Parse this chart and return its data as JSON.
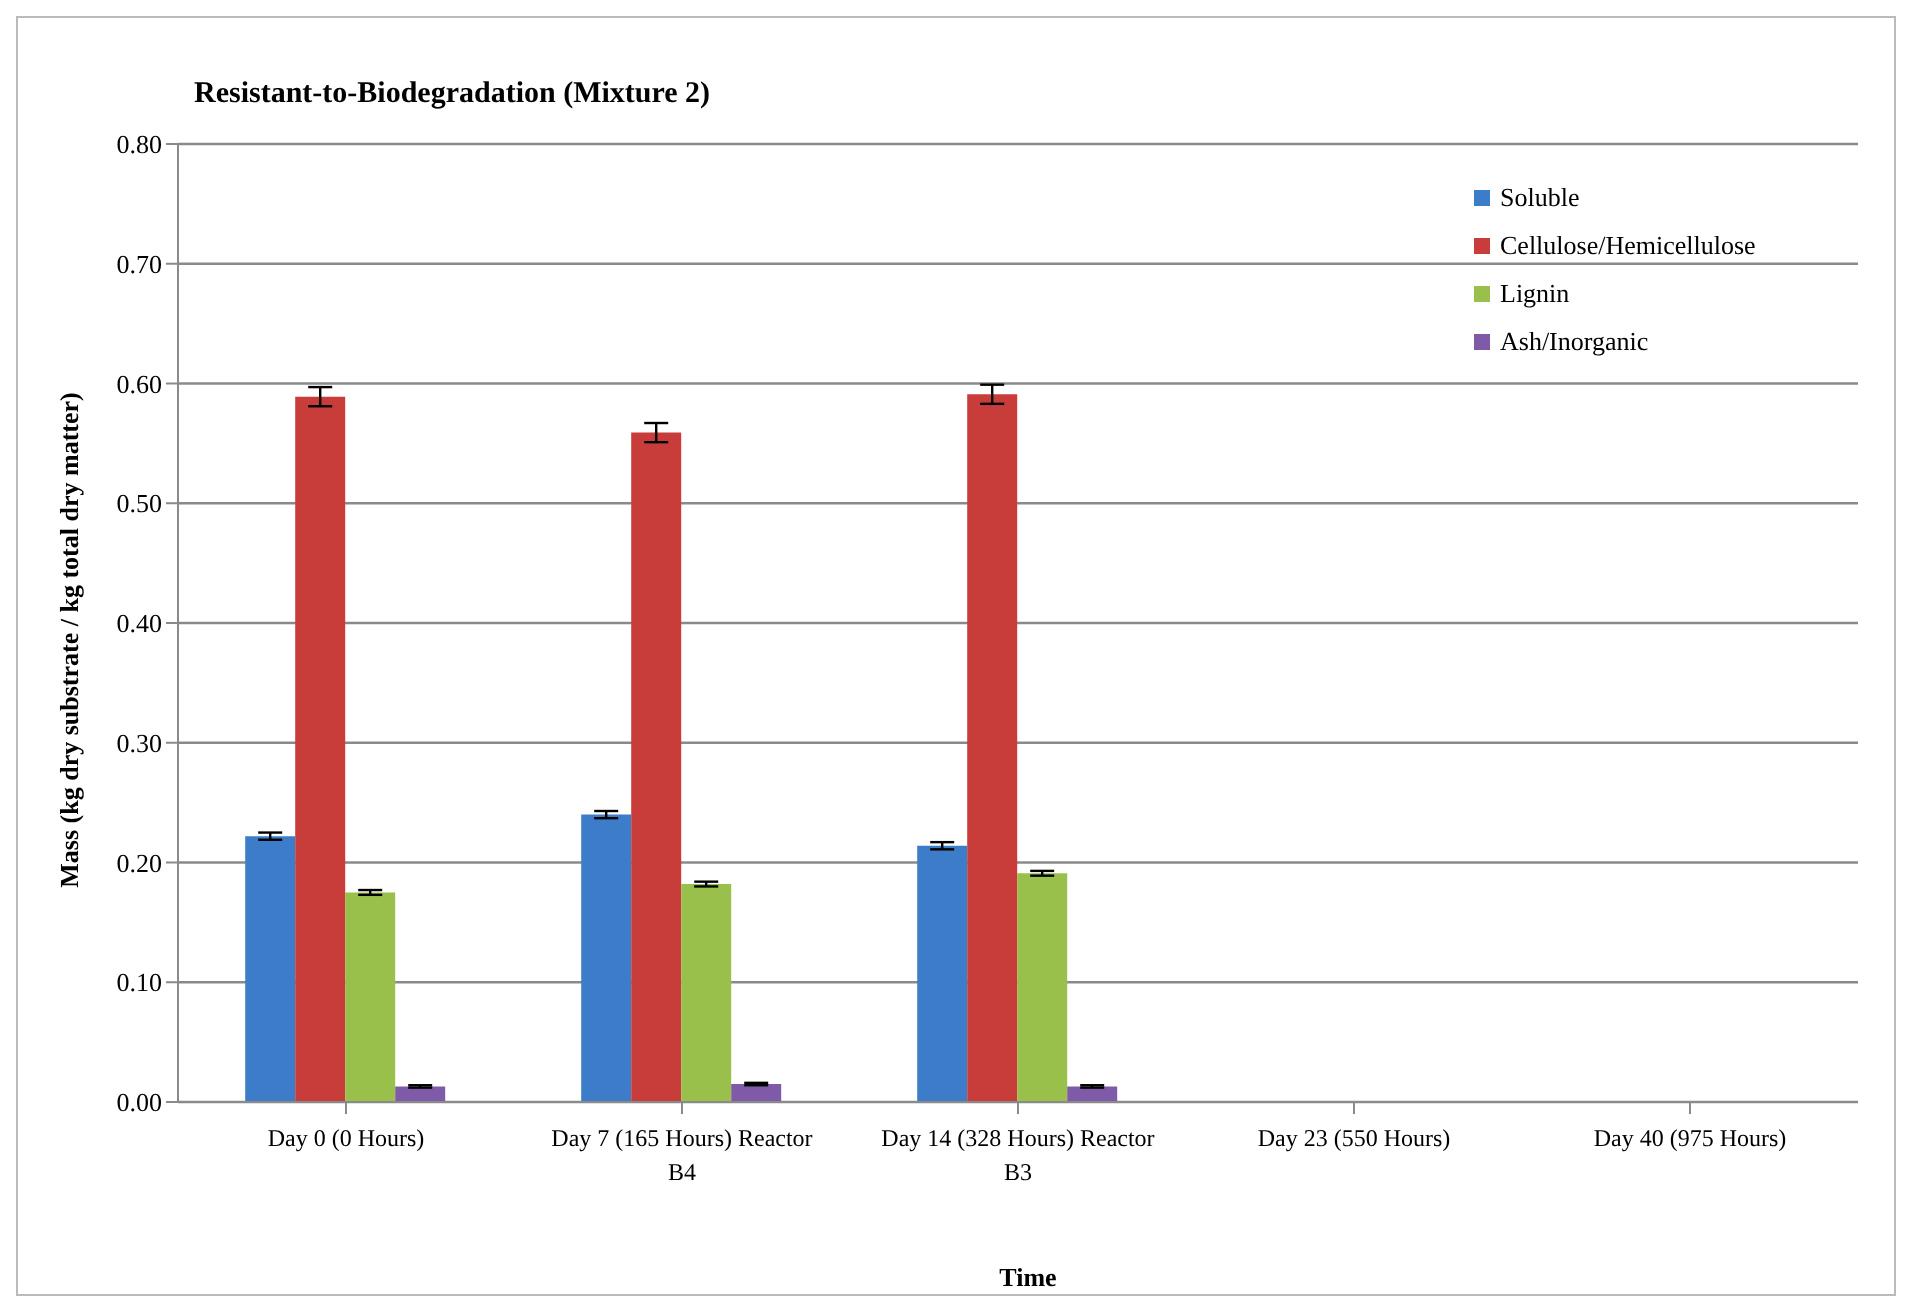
{
  "chart_data": {
    "type": "bar",
    "title": "Resistant-to-Biodegradation (Mixture 2)",
    "xlabel": "Time",
    "ylabel": "Mass (kg dry substrate / kg total dry matter)",
    "categories": [
      "Day 0 (0 Hours)",
      "Day 7 (165 Hours) Reactor B4",
      "Day 14 (328 Hours) Reactor B3",
      "Day 23 (550 Hours)",
      "Day 40 (975 Hours)"
    ],
    "series": [
      {
        "name": "Soluble",
        "color": "#3c7cc8",
        "values": [
          0.222,
          0.24,
          0.214,
          null,
          null
        ],
        "errors": [
          0.003,
          0.003,
          0.003,
          null,
          null
        ]
      },
      {
        "name": "Cellulose/Hemicellulose",
        "color": "#c83c3a",
        "values": [
          0.589,
          0.559,
          0.591,
          null,
          null
        ],
        "errors": [
          0.008,
          0.008,
          0.008,
          null,
          null
        ]
      },
      {
        "name": "Lignin",
        "color": "#98c04a",
        "values": [
          0.175,
          0.182,
          0.191,
          null,
          null
        ],
        "errors": [
          0.002,
          0.002,
          0.002,
          null,
          null
        ]
      },
      {
        "name": "Ash/Inorganic",
        "color": "#7e5aa8",
        "values": [
          0.013,
          0.015,
          0.013,
          null,
          null
        ],
        "errors": [
          0.001,
          0.001,
          0.001,
          null,
          null
        ]
      }
    ],
    "ylim": [
      0,
      0.8
    ],
    "yticks": [
      {
        "value": 0,
        "label": "0.00"
      },
      {
        "value": 0.1,
        "label": "0.10"
      },
      {
        "value": 0.2,
        "label": "0.20"
      },
      {
        "value": 0.3,
        "label": "0.30"
      },
      {
        "value": 0.4,
        "label": "0.40"
      },
      {
        "value": 0.5,
        "label": "0.50"
      },
      {
        "value": 0.6,
        "label": "0.60"
      },
      {
        "value": 0.7,
        "label": "0.70"
      },
      {
        "value": 0.8,
        "label": "0.80"
      }
    ],
    "grid": "y",
    "legend": "top right"
  }
}
